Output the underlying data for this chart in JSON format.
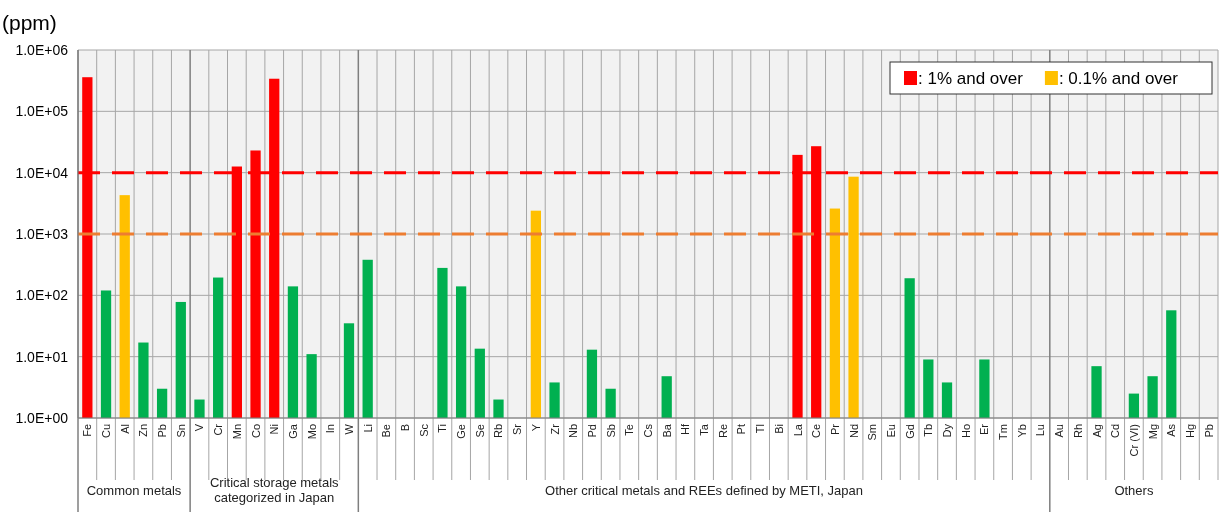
{
  "chart_data": {
    "type": "bar",
    "ylabel": "(ppm)",
    "categories": [
      "Fe",
      "Cu",
      "Al",
      "Zn",
      "Pb",
      "Sn",
      "V",
      "Cr",
      "Mn",
      "Co",
      "Ni",
      "Ga",
      "Mo",
      "In",
      "W",
      "Li",
      "Be",
      "B",
      "Sc",
      "Ti",
      "Ge",
      "Se",
      "Rb",
      "Sr",
      "Y",
      "Zr",
      "Nb",
      "Pd",
      "Sb",
      "Te",
      "Cs",
      "Ba",
      "Hf",
      "Ta",
      "Re",
      "Pt",
      "Tl",
      "Bi",
      "La",
      "Ce",
      "Pr",
      "Nd",
      "Sm",
      "Eu",
      "Gd",
      "Tb",
      "Dy",
      "Ho",
      "Er",
      "Tm",
      "Yb",
      "Lu",
      "Au",
      "Rh",
      "Ag",
      "Cd",
      "Cr (VI)",
      "Mg",
      "As",
      "Hg",
      "Pb"
    ],
    "series": [
      {
        "name": ": 1% and over",
        "color": "#ff0000",
        "values": [
          360000,
          null,
          null,
          null,
          null,
          null,
          null,
          null,
          12600,
          23000,
          340000,
          null,
          null,
          null,
          null,
          null,
          null,
          null,
          null,
          null,
          null,
          null,
          null,
          null,
          null,
          null,
          null,
          null,
          null,
          null,
          null,
          null,
          null,
          null,
          null,
          null,
          null,
          null,
          19500,
          27000,
          null,
          null,
          null,
          null,
          null,
          null,
          null,
          null,
          null,
          null,
          null,
          null,
          null,
          null,
          null,
          null,
          null,
          null,
          null,
          null,
          null
        ]
      },
      {
        "name": ": 0.1% and over",
        "color": "#ffc000",
        "values": [
          null,
          null,
          4300,
          null,
          null,
          null,
          null,
          null,
          null,
          null,
          null,
          null,
          null,
          null,
          null,
          null,
          null,
          null,
          null,
          null,
          null,
          null,
          null,
          null,
          2400,
          null,
          null,
          null,
          null,
          null,
          null,
          null,
          null,
          null,
          null,
          null,
          null,
          null,
          null,
          null,
          2600,
          8600,
          null,
          null,
          null,
          null,
          null,
          null,
          null,
          null,
          null,
          null,
          null,
          null,
          null,
          null,
          null,
          null,
          null,
          null,
          null
        ]
      },
      {
        "color": "#00b050",
        "values": [
          null,
          120,
          null,
          17,
          3,
          78,
          2,
          195,
          null,
          null,
          null,
          140,
          11,
          null,
          35,
          380,
          null,
          null,
          null,
          280,
          140,
          13.5,
          2,
          null,
          null,
          3.8,
          null,
          13,
          3,
          null,
          null,
          4.8,
          null,
          null,
          null,
          null,
          null,
          null,
          null,
          null,
          null,
          null,
          null,
          null,
          190,
          9,
          3.8,
          null,
          9,
          null,
          null,
          null,
          null,
          null,
          7,
          null,
          2.5,
          4.8,
          57,
          null,
          null
        ]
      }
    ],
    "log": true,
    "ylim": [
      1,
      1000000
    ],
    "yticks": [
      {
        "value": 1,
        "label": "1.0E+00"
      },
      {
        "value": 10,
        "label": "1.0E+01"
      },
      {
        "value": 100,
        "label": "1.0E+02"
      },
      {
        "value": 1000,
        "label": "1.0E+03"
      },
      {
        "value": 10000,
        "label": "1.0E+04"
      },
      {
        "value": 100000,
        "label": "1.0E+05"
      },
      {
        "value": 1000000,
        "label": "1.0E+06"
      }
    ],
    "grid": true,
    "legend": "top right",
    "ref_lines": [
      {
        "axis": "y",
        "value": 10000,
        "color": "#ff0000",
        "line_style": "dashed"
      },
      {
        "axis": "y",
        "value": 1000,
        "color": "#ed7d31",
        "line_style": "dashed"
      }
    ],
    "annotations": [
      "Common metals",
      "Critical storage metals categorized in Japan",
      "Other critical metals and REEs defined by METI, Japan",
      "Others"
    ]
  }
}
